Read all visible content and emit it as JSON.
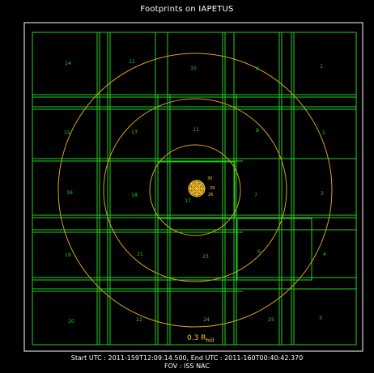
{
  "title": "Footprints on IAPETUS",
  "footer": {
    "line1": "Start UTC : 2011-159T12:09:14.500,   End UTC : 2011-160T00:40:42.370",
    "line2": "FOV : ISS NAC"
  },
  "hill_label": {
    "main": "0.3 R",
    "sub": "hill"
  },
  "colors": {
    "footprint": "#22d022",
    "hill_circle": "#d8a020",
    "frame": "#ffffff",
    "moon": "#ffcc33"
  },
  "footprint_labels": [
    "14",
    "12",
    "10",
    "9",
    "1",
    "15",
    "13",
    "11",
    "8",
    "2",
    "16",
    "18",
    "17",
    "7",
    "3",
    "19",
    "21",
    "23",
    "6",
    "4",
    "20",
    "22",
    "24",
    "25",
    "5"
  ],
  "moon_labels": [
    "30",
    "29",
    "26"
  ]
}
